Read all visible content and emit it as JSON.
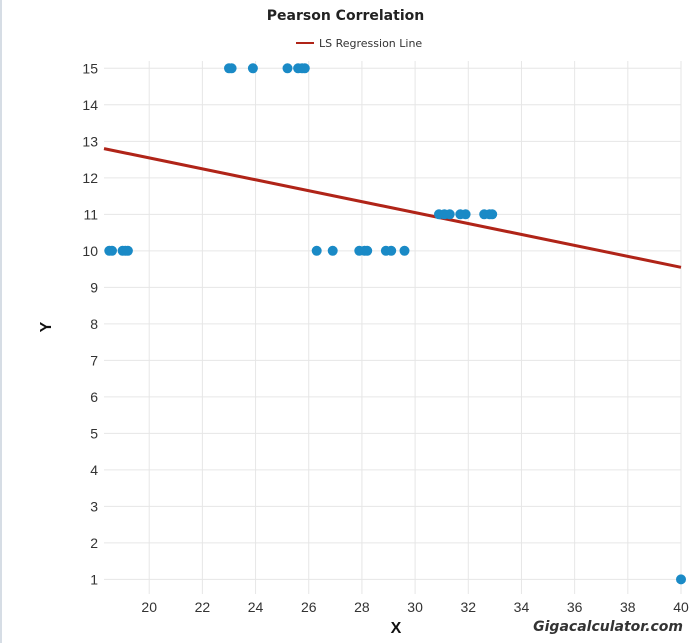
{
  "chart_data": {
    "type": "scatter",
    "title": "Pearson Correlation",
    "xlabel": "X",
    "ylabel": "Y",
    "xlim": [
      18.3,
      40
    ],
    "ylim": [
      0.6,
      15.2
    ],
    "xticks": [
      "20",
      "22",
      "24",
      "26",
      "28",
      "30",
      "32",
      "34",
      "36",
      "38",
      "40"
    ],
    "yticks": [
      "1",
      "2",
      "3",
      "4",
      "5",
      "6",
      "7",
      "8",
      "9",
      "10",
      "11",
      "12",
      "13",
      "14",
      "15"
    ],
    "grid": true,
    "legend": {
      "position": "top-center",
      "entries": [
        "LS Regression Line"
      ]
    },
    "series": [
      {
        "name": "",
        "type": "scatter",
        "color": "#1a8ac6",
        "points": [
          [
            18.5,
            10
          ],
          [
            18.6,
            10
          ],
          [
            19.0,
            10
          ],
          [
            19.1,
            10
          ],
          [
            19.2,
            10
          ],
          [
            23.0,
            15
          ],
          [
            23.1,
            15
          ],
          [
            23.9,
            15
          ],
          [
            25.2,
            15
          ],
          [
            25.6,
            15
          ],
          [
            25.75,
            15
          ],
          [
            25.85,
            15
          ],
          [
            26.3,
            10
          ],
          [
            26.9,
            10
          ],
          [
            27.9,
            10
          ],
          [
            28.1,
            10
          ],
          [
            28.2,
            10
          ],
          [
            28.9,
            10
          ],
          [
            29.1,
            10
          ],
          [
            29.6,
            10
          ],
          [
            30.9,
            11
          ],
          [
            31.1,
            11
          ],
          [
            31.3,
            11
          ],
          [
            31.7,
            11
          ],
          [
            31.9,
            11
          ],
          [
            32.6,
            11
          ],
          [
            32.8,
            11
          ],
          [
            32.9,
            11
          ],
          [
            40.0,
            1
          ]
        ]
      },
      {
        "name": "LS Regression Line",
        "type": "line",
        "color": "#b02418",
        "points": [
          [
            18.3,
            12.8
          ],
          [
            40,
            9.55
          ]
        ]
      }
    ]
  },
  "watermark": "Gigacalculator.com"
}
